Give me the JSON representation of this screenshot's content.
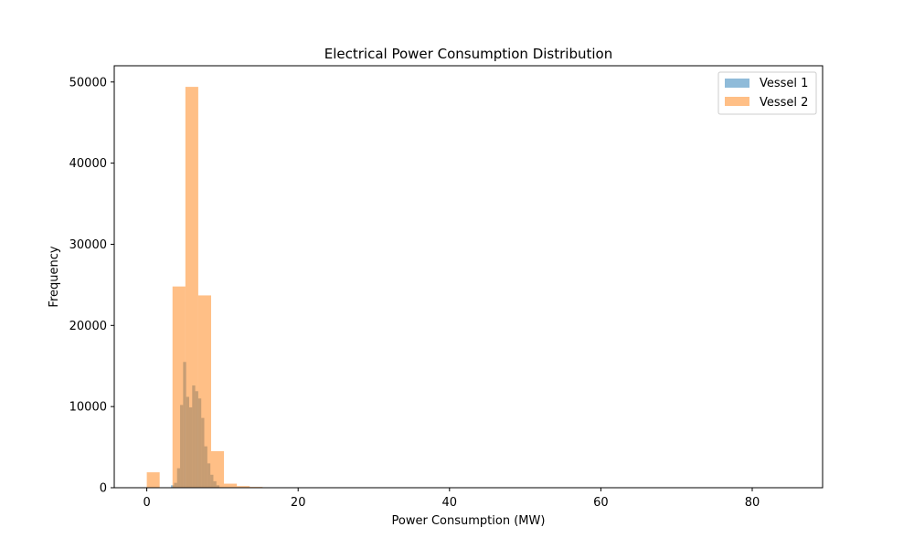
{
  "chart_data": {
    "type": "histogram",
    "title": "Electrical Power Consumption Distribution",
    "xlabel": "Power Consumption (MW)",
    "ylabel": "Frequency",
    "xlim": [
      -4.3,
      89.3
    ],
    "ylim": [
      0,
      52000
    ],
    "xticks": [
      0,
      20,
      40,
      60,
      80
    ],
    "yticks": [
      0,
      10000,
      20000,
      30000,
      40000,
      50000
    ],
    "grid": false,
    "legend_position": "top-right",
    "series": [
      {
        "name": "Vessel 1",
        "color": "#1f77b4",
        "alpha": 0.5,
        "bin_width": 0.4,
        "bins": [
          {
            "x0": 3.2,
            "count": 300
          },
          {
            "x0": 3.6,
            "count": 600
          },
          {
            "x0": 4.0,
            "count": 2400
          },
          {
            "x0": 4.4,
            "count": 10200
          },
          {
            "x0": 4.8,
            "count": 15500
          },
          {
            "x0": 5.2,
            "count": 11200
          },
          {
            "x0": 5.6,
            "count": 9900
          },
          {
            "x0": 6.0,
            "count": 12600
          },
          {
            "x0": 6.4,
            "count": 11900
          },
          {
            "x0": 6.8,
            "count": 11000
          },
          {
            "x0": 7.2,
            "count": 8600
          },
          {
            "x0": 7.6,
            "count": 5100
          },
          {
            "x0": 8.0,
            "count": 3000
          },
          {
            "x0": 8.4,
            "count": 1600
          },
          {
            "x0": 8.8,
            "count": 800
          },
          {
            "x0": 9.2,
            "count": 300
          }
        ]
      },
      {
        "name": "Vessel 2",
        "color": "#ff7f0e",
        "alpha": 0.5,
        "bin_width": 1.7,
        "bins": [
          {
            "x0": 0.0,
            "count": 1900
          },
          {
            "x0": 3.4,
            "count": 24800
          },
          {
            "x0": 5.1,
            "count": 49400
          },
          {
            "x0": 6.8,
            "count": 23700
          },
          {
            "x0": 8.5,
            "count": 4500
          },
          {
            "x0": 10.2,
            "count": 500
          },
          {
            "x0": 11.9,
            "count": 200
          },
          {
            "x0": 13.6,
            "count": 100
          },
          {
            "x0": 15.3,
            "count": 40
          },
          {
            "x0": 17.0,
            "count": 20
          },
          {
            "x0": 18.7,
            "count": 10
          },
          {
            "x0": 20.4,
            "count": 5
          }
        ]
      }
    ]
  }
}
